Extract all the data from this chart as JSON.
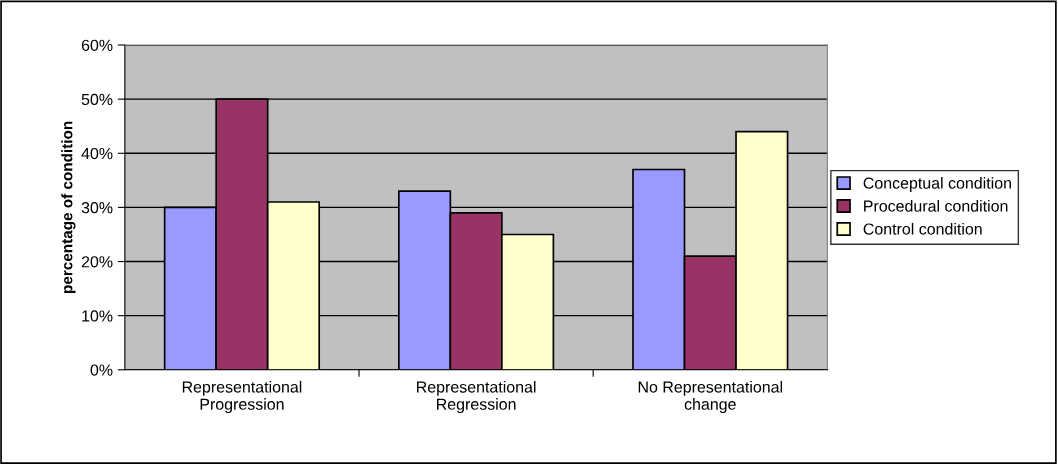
{
  "chart_data": {
    "type": "bar",
    "ylabel": "percentage of condition",
    "categories": [
      "Representational\nProgression",
      "Representational\nRegression",
      "No Representational\nchange"
    ],
    "series": [
      {
        "name": "Conceptual condition",
        "color": "#9999ff",
        "values": [
          30,
          33,
          37
        ]
      },
      {
        "name": "Procedural condition",
        "color": "#993366",
        "values": [
          50,
          29,
          21
        ]
      },
      {
        "name": "Control condition",
        "color": "#ffffcc",
        "values": [
          31,
          25,
          44
        ]
      }
    ],
    "ylim": [
      0,
      60
    ],
    "yticks": [
      {
        "value": 0,
        "label": "0%"
      },
      {
        "value": 10,
        "label": "10%"
      },
      {
        "value": 20,
        "label": "20%"
      },
      {
        "value": 30,
        "label": "30%"
      },
      {
        "value": 40,
        "label": "40%"
      },
      {
        "value": 50,
        "label": "50%"
      },
      {
        "value": 60,
        "label": "60%"
      }
    ],
    "grid": "y",
    "legend": "right"
  }
}
